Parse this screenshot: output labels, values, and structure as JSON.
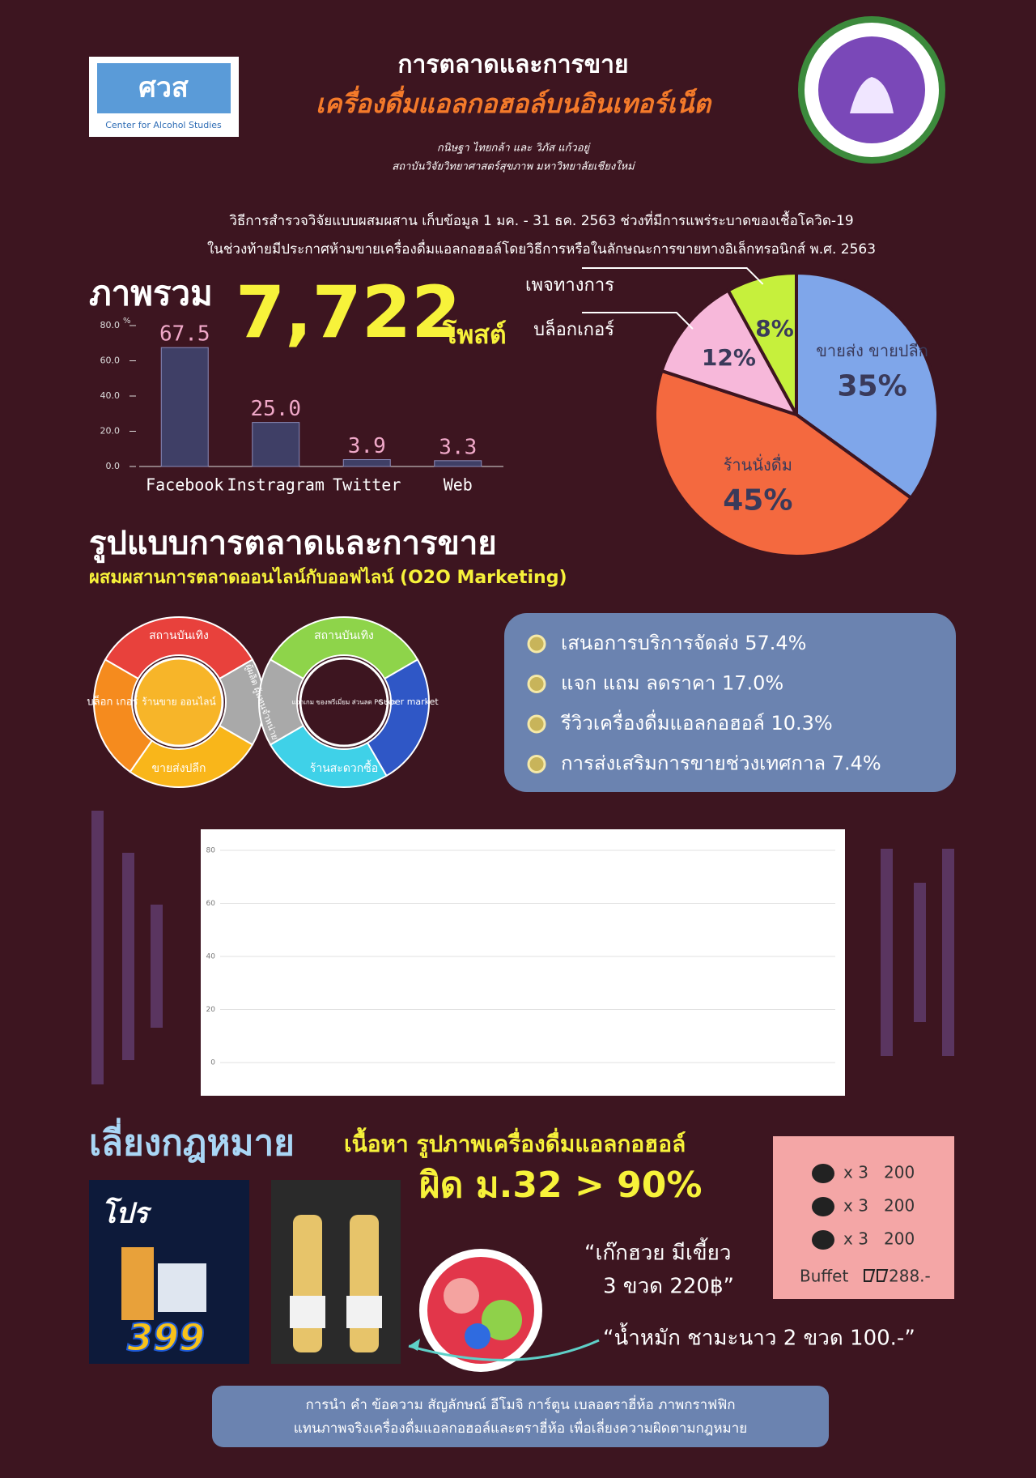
{
  "header": {
    "logo_left": "ศวส",
    "logo_left_sub": "Center for Alcohol Studies",
    "title_line1": "การตลาดและการขาย",
    "title_line2": "เครื่องดื่มแอลกอฮอล์บนอินเทอร์เน็ต",
    "authors": "กนิษฐา ไทยกล้า และ วิภัส แก้วอยู่",
    "affiliation": "สถาบันวิจัยวิทยาศาสตร์สุขภาพ มหาวิทยาลัยเชียงใหม่"
  },
  "method": [
    "วิธีการสำรวจวิจัยแบบผสมผสาน เก็บข้อมูล 1 มค. - 31 ธค. 2563 ช่วงที่มีการแพร่ระบาดของเชื้อโควิด-19",
    "ในช่วงท้ายมีประกาศห้ามขายเครื่องดื่มแอลกอฮอล์โดยวิธีการหรือในลักษณะการขายทางอิเล็กทรอนิกส์ พ.ศ. 2563"
  ],
  "overview": {
    "label": "ภาพรวม",
    "total": "7,722",
    "unit": "โพสต์"
  },
  "chart_data": [
    {
      "type": "bar",
      "categories": [
        "Facebook",
        "Instragram",
        "Twitter",
        "Web"
      ],
      "values": [
        67.5,
        25.0,
        3.9,
        3.3
      ],
      "value_labels": [
        "67.5",
        "25.0",
        "3.9",
        "3.3"
      ],
      "color": "#3f3f66",
      "y_unit": "%",
      "ylim": [
        0,
        80
      ],
      "yticks": [
        {
          "value": 0,
          "label": "0.0"
        },
        {
          "value": 20,
          "label": "20.0"
        },
        {
          "value": 40,
          "label": "40.0"
        },
        {
          "value": 60,
          "label": "60.0"
        },
        {
          "value": 80,
          "label": "80.0"
        }
      ]
    },
    {
      "type": "pie",
      "categories": [
        "ขายส่ง ขายปลีก",
        "ร้านนั่งดื่ม",
        "บล็อกเกอร์",
        "เพจทางการ"
      ],
      "values": [
        35,
        45,
        12,
        8
      ],
      "value_labels": [
        "35%",
        "45%",
        "12%",
        "8%"
      ],
      "colors": [
        "#7fa6ea",
        "#f4693f",
        "#f7b8da",
        "#c6f03c"
      ]
    },
    {
      "type": "line",
      "ylim": [
        0,
        80
      ],
      "yticks": [
        0,
        20,
        40,
        60,
        80
      ],
      "grid": true
    }
  ],
  "marketing": {
    "title": "รูปแบบการตลาดและการขาย",
    "subtitle": "ผสมผสานการตลาดออนไลน์กับออฟไลน์ (O2O Marketing)",
    "diagram": {
      "left_top": "สถานบันเทิง",
      "left_side": "บล็อก เกอร์",
      "left_bottom": "ขายส่งปลีก",
      "left_center": "ร้านขาย ออนไลน์",
      "middle": "ผู้ผลิต ผู้แทนจำหน่าย",
      "right_top": "สถานบันเทิง",
      "right_side": "super market",
      "right_bottom": "ร้านสะดวกซื้อ",
      "right_center": "แจกเกม ของพรีเมี่ยม ส่วนลด PG รศร"
    },
    "channels": [
      "เสนอการบริการจัดส่ง 57.4%",
      "แจก แถม ลดราคา 17.0%",
      "รีวิวเครื่องดื่มแอลกอฮอล์ 10.3%",
      "การส่งเสริมการขายช่วงเทศกาล 7.4%"
    ]
  },
  "loophole": {
    "title": "เลี่ยงกฎหมาย",
    "subtitle": "เนื้อหา รูปภาพเครื่องดื่มแอลกอฮอล์",
    "violation": "ผิด ม.32 > 90%",
    "promo_badge": "โปร",
    "promo_price": "399",
    "quote1_line1": "“เก๊กฮวย มีเขี้ยว",
    "quote1_line2": "3 ขวด 220฿”",
    "quote2": "“น้ำหมัก ชามะนาว 2 ขวด 100.-”",
    "price_list": [
      {
        "qty": "x 3",
        "price": "200"
      },
      {
        "qty": "x 3",
        "price": "200"
      },
      {
        "qty": "x 3",
        "price": "200"
      }
    ],
    "buffet": {
      "label": "Buffet",
      "price": "288.-"
    },
    "note_line1": "การนำ คำ ข้อความ สัญลักษณ์ อีโมจิ การ์ตูน เบลอตราฮี่ห้อ ภาพกราฟฟิก",
    "note_line2": "แทนภาพจริงเครื่องดื่มแอลกอฮอล์และตราฮี่ห้อ เพื่อเลี่ยงความผิดตามกฎหมาย"
  }
}
